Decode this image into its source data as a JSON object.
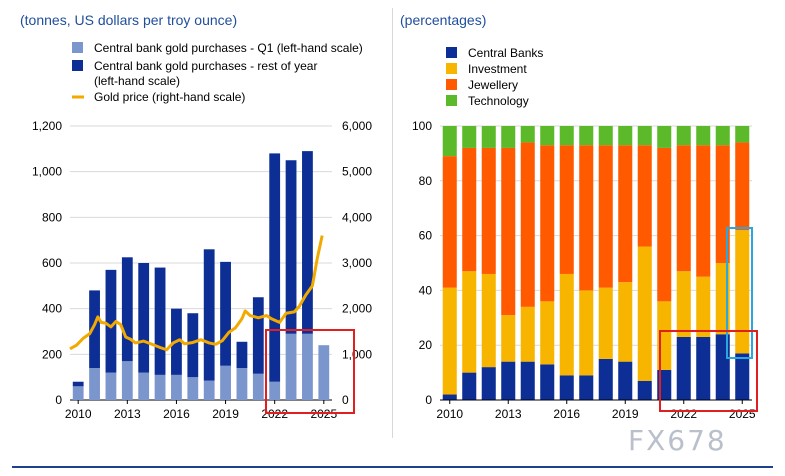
{
  "left_panel": {
    "title": "(tonnes, US dollars per troy ounce)"
  },
  "right_panel": {
    "title": "(percentages)"
  },
  "watermark": "FX678",
  "colors": {
    "q1": "#7b96cc",
    "rest_of_year": "#0d2f95",
    "gold_price": "#f2a900",
    "central_banks": "#0d2f95",
    "investment": "#f7b500",
    "jewellery": "#ff5a00",
    "technology": "#5cba2a",
    "highlight_red": "#e02020",
    "highlight_blue": "#29a8e0"
  },
  "chart_data": [
    {
      "type": "bar",
      "stacked": true,
      "legend": [
        {
          "label": "Central bank gold purchases - Q1 (left-hand scale)",
          "kind": "bar",
          "color_key": "q1"
        },
        {
          "label": "Central bank gold purchases - rest of year",
          "label2": "(left-hand scale)",
          "kind": "bar",
          "color_key": "rest_of_year"
        },
        {
          "label": "Gold price (right-hand scale)",
          "kind": "line",
          "color_key": "gold_price"
        }
      ],
      "x_ticks": [
        "2010",
        "2013",
        "2016",
        "2019",
        "2022",
        "2025"
      ],
      "y_left_ticks": [
        "0",
        "200",
        "400",
        "600",
        "800",
        "1,000",
        "1,200"
      ],
      "y_right_ticks": [
        "0",
        "1,000",
        "2,000",
        "3,000",
        "4,000",
        "5,000",
        "6,000"
      ],
      "ylim_left": [
        0,
        1200
      ],
      "ylim_right": [
        0,
        6000
      ],
      "grid": true,
      "years": [
        2010,
        2011,
        2012,
        2013,
        2014,
        2015,
        2016,
        2017,
        2018,
        2019,
        2020,
        2021,
        2022,
        2023,
        2024,
        2025
      ],
      "series": [
        {
          "name": "Central bank gold purchases - Q1 (left-hand scale)",
          "values": [
            60,
            140,
            120,
            170,
            120,
            110,
            110,
            100,
            85,
            150,
            140,
            115,
            80,
            290,
            290,
            240
          ]
        },
        {
          "name": "Central bank gold purchases - rest of year",
          "values": [
            20,
            340,
            450,
            455,
            480,
            470,
            290,
            280,
            575,
            455,
            115,
            335,
            1000,
            760,
            800,
            0
          ]
        }
      ],
      "gold_price": {
        "x": [
          2010.0,
          2010.4,
          2010.8,
          2011.2,
          2011.5,
          2011.7,
          2011.9,
          2012.2,
          2012.5,
          2012.8,
          2013.1,
          2013.4,
          2013.7,
          2014.0,
          2014.5,
          2015.0,
          2015.5,
          2015.9,
          2016.3,
          2016.7,
          2017.0,
          2017.5,
          2018.0,
          2018.5,
          2018.9,
          2019.3,
          2019.7,
          2020.1,
          2020.5,
          2020.7,
          2021.0,
          2021.5,
          2022.0,
          2022.3,
          2022.8,
          2023.2,
          2023.7,
          2024.0,
          2024.4,
          2024.8,
          2025.1,
          2025.4
        ],
        "values": [
          1120,
          1200,
          1350,
          1450,
          1650,
          1820,
          1700,
          1680,
          1600,
          1720,
          1650,
          1380,
          1330,
          1250,
          1290,
          1220,
          1150,
          1100,
          1250,
          1320,
          1230,
          1260,
          1320,
          1250,
          1220,
          1300,
          1480,
          1580,
          1780,
          1950,
          1850,
          1800,
          1850,
          1780,
          1700,
          1900,
          1930,
          2050,
          2300,
          2500,
          3100,
          3600
        ]
      }
    },
    {
      "type": "bar",
      "stacked": true,
      "legend": [
        {
          "label": "Central Banks",
          "color_key": "central_banks"
        },
        {
          "label": "Investment",
          "color_key": "investment"
        },
        {
          "label": "Jewellery",
          "color_key": "jewellery"
        },
        {
          "label": "Technology",
          "color_key": "technology"
        }
      ],
      "x_ticks": [
        "2010",
        "2013",
        "2016",
        "2019",
        "2022",
        "2025"
      ],
      "y_ticks": [
        "0",
        "20",
        "40",
        "60",
        "80",
        "100"
      ],
      "ylim": [
        0,
        100
      ],
      "grid": true,
      "years": [
        2010,
        2011,
        2012,
        2013,
        2014,
        2015,
        2016,
        2017,
        2018,
        2019,
        2020,
        2021,
        2022,
        2023,
        2024,
        2025
      ],
      "series": [
        {
          "name": "Central Banks",
          "values": [
            2,
            10,
            12,
            14,
            14,
            13,
            9,
            9,
            15,
            14,
            7,
            11,
            23,
            23,
            24,
            17
          ]
        },
        {
          "name": "Investment",
          "values": [
            39,
            37,
            34,
            17,
            20,
            23,
            37,
            31,
            26,
            29,
            49,
            25,
            24,
            22,
            26,
            45
          ]
        },
        {
          "name": "Jewellery",
          "values": [
            48,
            45,
            46,
            61,
            60,
            57,
            47,
            53,
            52,
            50,
            37,
            56,
            46,
            48,
            43,
            32
          ]
        },
        {
          "name": "Technology",
          "values": [
            11,
            8,
            8,
            8,
            6,
            7,
            7,
            7,
            7,
            7,
            7,
            8,
            7,
            7,
            7,
            6
          ]
        }
      ]
    }
  ]
}
